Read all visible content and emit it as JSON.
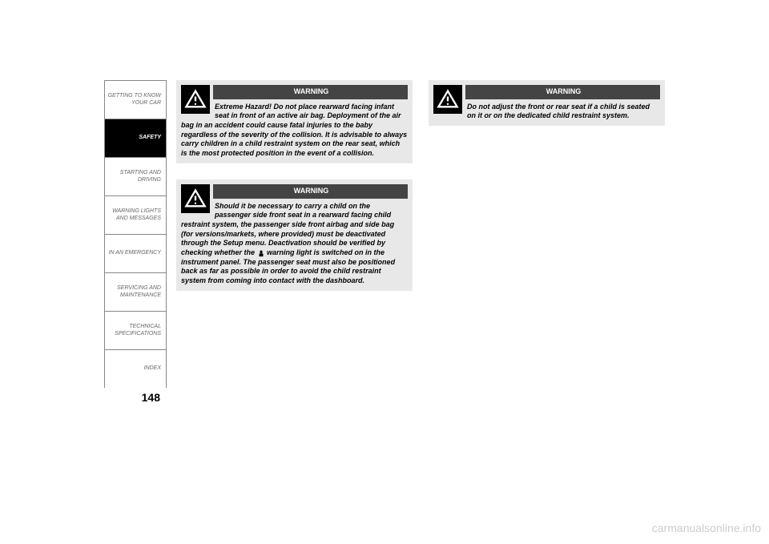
{
  "sidebar": {
    "items": [
      {
        "label": "GETTING TO KNOW\nYOUR CAR",
        "active": false
      },
      {
        "label": "SAFETY",
        "active": true
      },
      {
        "label": "STARTING AND\nDRIVING",
        "active": false
      },
      {
        "label": "WARNING LIGHTS\nAND MESSAGES",
        "active": false
      },
      {
        "label": "IN AN EMERGENCY",
        "active": false
      },
      {
        "label": "SERVICING AND\nMAINTENANCE",
        "active": false
      },
      {
        "label": "TECHNICAL\nSPECIFICATIONS",
        "active": false
      },
      {
        "label": "INDEX",
        "active": false
      }
    ]
  },
  "page_number": "148",
  "warnings": {
    "w1": {
      "title": "WARNING",
      "text": "Extreme Hazard! Do not place rearward facing infant seat in front of an active air bag. Deployment of the air bag in an accident could cause fatal injuries to the baby regardless of the severity of the collision. It is advisable to always carry children in a child restraint system on the rear seat, which is the most protected position in the event of a collision."
    },
    "w2": {
      "title": "WARNING",
      "text_before": "Should it be necessary to carry a child on the passenger side front seat in a rearward facing child restraint system, the passenger side front airbag and side bag (for versions/markets, where provided) must be deactivated through the Setup menu. Deactivation should be verified by checking whether the ",
      "text_after": " warning light is switched on in the instrument panel. The passenger seat must also be positioned back as far as possible in order to avoid the child restraint system from coming into contact with the dashboard."
    },
    "w3": {
      "title": "WARNING",
      "text": "Do not adjust the front or rear seat if a child is seated on it or on the dedicated child restraint system."
    }
  },
  "watermark": "carmanualsonline.info",
  "colors": {
    "box_bg": "#e8e8e8",
    "header_bg": "#444444",
    "icon_bg": "#000000",
    "sidebar_border": "#888888",
    "watermark_color": "#cccccc"
  }
}
